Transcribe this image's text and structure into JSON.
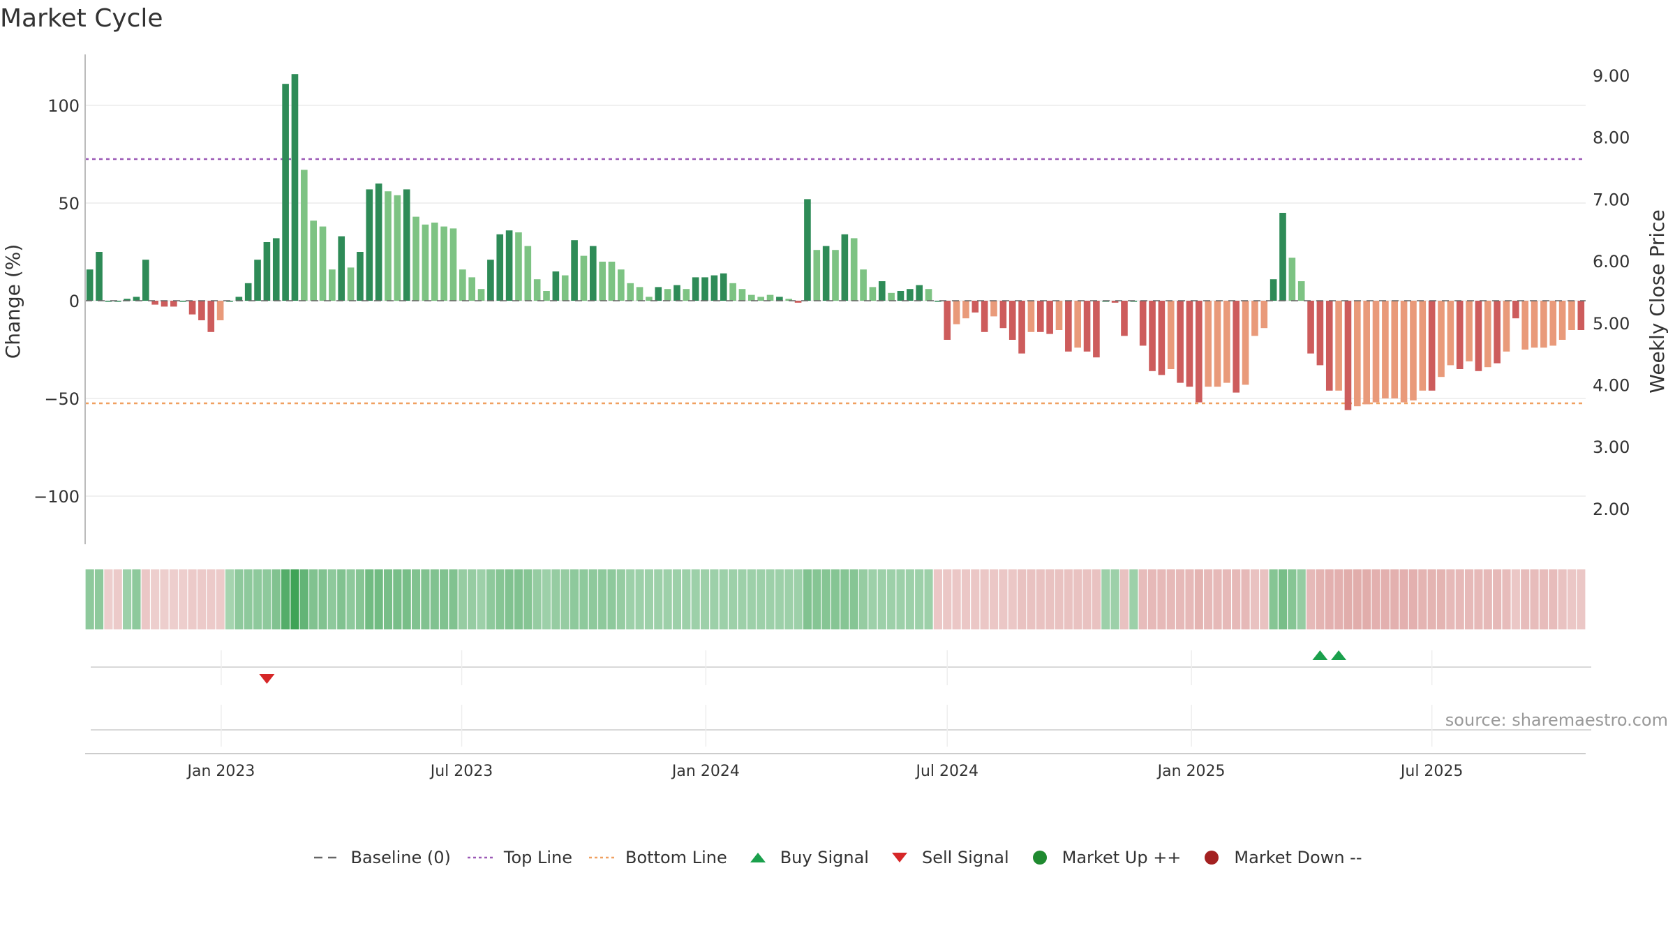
{
  "title": "Market Cycle",
  "source": "source: sharemaestro.com",
  "colors": {
    "up_strong": "#2e8b57",
    "up_light": "#7dc383",
    "down_strong": "#cd5c5c",
    "down_light": "#e99a7a",
    "top_line": "#9b59b6",
    "bottom_line": "#f0a060",
    "buy": "#1aa04c",
    "sell": "#d62728",
    "market_up": "#1f8a30",
    "market_down": "#a32020",
    "baseline": "#666666"
  },
  "legend": [
    {
      "label": "Baseline (0)",
      "icon": "dash-line"
    },
    {
      "label": "Top Line",
      "icon": "dotted-purple-line"
    },
    {
      "label": "Bottom Line",
      "icon": "dotted-orange-line"
    },
    {
      "label": "Buy Signal",
      "icon": "triangle-up-green"
    },
    {
      "label": "Sell Signal",
      "icon": "triangle-down-red"
    },
    {
      "label": "Market Up ++",
      "icon": "circle-green"
    },
    {
      "label": "Market Down --",
      "icon": "circle-red"
    }
  ],
  "chart_data": {
    "type": "bar",
    "ylabel": "Change (%)",
    "y2label": "Weekly Close Price",
    "ylim": [
      -125,
      125
    ],
    "y2lim": [
      1.5,
      9.5
    ],
    "yticks": [
      "100",
      "50",
      "0",
      "−50",
      "−100"
    ],
    "yticks_values": [
      100,
      50,
      0,
      -50,
      -100
    ],
    "y2ticks": [
      "9.00",
      "8.00",
      "7.00",
      "6.00",
      "5.00",
      "4.00",
      "3.00",
      "2.00"
    ],
    "y2ticks_values": [
      9,
      8,
      7,
      6,
      5,
      4,
      3,
      2
    ],
    "xticks": [
      "Jan 2023",
      "Jul 2023",
      "Jan 2024",
      "Jul 2024",
      "Jan 2025",
      "Jul 2025"
    ],
    "xticks_values": [
      14.6,
      40.4,
      66.6,
      92.5,
      118.7,
      144.5
    ],
    "x_start": "2022-10-21",
    "x_step": "1 week",
    "top_line": 72.5,
    "bottom_line": -52.5,
    "grid": true,
    "legend_position": "bottom",
    "series": [
      {
        "values": [
          16,
          25,
          0,
          0,
          1,
          2,
          21,
          -2,
          -3,
          -3,
          0,
          -7,
          -10,
          -16,
          -10,
          0,
          2,
          9,
          21,
          30,
          32,
          111,
          116,
          67,
          41,
          38,
          16,
          33,
          17,
          25,
          57,
          60,
          56,
          54,
          57,
          43,
          39,
          40,
          38,
          37,
          16,
          12,
          6,
          21,
          34,
          36,
          35,
          28,
          11,
          5,
          15,
          13,
          31,
          23,
          28,
          20,
          20,
          16,
          9,
          7,
          2,
          7,
          6,
          8,
          6,
          12,
          12,
          13,
          14,
          9,
          6,
          3,
          2,
          3,
          2,
          1,
          -1,
          52,
          26,
          28,
          26,
          34,
          32,
          16,
          7,
          10,
          4,
          5,
          6,
          8,
          6,
          0,
          -20,
          -12,
          -9,
          -6,
          -16,
          -8,
          -14,
          -20,
          -27,
          -16,
          -16,
          -17,
          -15,
          -26,
          -24,
          -26,
          -29,
          0,
          -1,
          -18,
          0,
          -23,
          -36,
          -38,
          -35,
          -42,
          -44,
          -52,
          -44,
          -44,
          -42,
          -47,
          -43,
          -18,
          -14,
          11,
          45,
          22,
          10,
          -27,
          -33,
          -46,
          -46,
          -56,
          -54,
          -53,
          -52,
          -50,
          -50,
          -52,
          -51,
          -46,
          -46,
          -39,
          -33,
          -35,
          -31,
          -36,
          -34,
          -32,
          -26,
          -9,
          -25,
          -24,
          -24,
          -23,
          -20,
          -15,
          -15
        ],
        "shades": [
          "S",
          "S",
          "S",
          "S",
          "S",
          "S",
          "S",
          "S",
          "S",
          "S",
          "S",
          "S",
          "S",
          "S",
          "L",
          "S",
          "S",
          "S",
          "S",
          "S",
          "S",
          "S",
          "S",
          "L",
          "L",
          "L",
          "L",
          "S",
          "L",
          "S",
          "S",
          "S",
          "L",
          "L",
          "S",
          "L",
          "L",
          "L",
          "L",
          "L",
          "L",
          "L",
          "L",
          "S",
          "S",
          "S",
          "L",
          "L",
          "L",
          "L",
          "S",
          "L",
          "S",
          "L",
          "S",
          "L",
          "L",
          "L",
          "L",
          "L",
          "L",
          "S",
          "L",
          "S",
          "L",
          "S",
          "S",
          "S",
          "S",
          "L",
          "L",
          "L",
          "L",
          "L",
          "S",
          "L",
          "S",
          "S",
          "L",
          "S",
          "L",
          "S",
          "L",
          "L",
          "L",
          "S",
          "L",
          "S",
          "S",
          "S",
          "L",
          "S",
          "S",
          "L",
          "L",
          "S",
          "S",
          "L",
          "S",
          "S",
          "S",
          "L",
          "S",
          "S",
          "L",
          "S",
          "L",
          "S",
          "S",
          "S",
          "S",
          "S",
          "S",
          "S",
          "S",
          "S",
          "L",
          "S",
          "S",
          "S",
          "L",
          "L",
          "L",
          "S",
          "L",
          "L",
          "L",
          "S",
          "S",
          "L",
          "L",
          "S",
          "S",
          "S",
          "L",
          "S",
          "L",
          "L",
          "L",
          "L",
          "L",
          "L",
          "L",
          "L",
          "S",
          "L",
          "L",
          "S",
          "L",
          "S",
          "L",
          "S",
          "L",
          "S",
          "L",
          "L",
          "L",
          "L",
          "L",
          "L",
          "S"
        ]
      }
    ],
    "heat_strip": [
      0.45,
      0.45,
      0.25,
      0.3,
      0.35,
      0.45,
      0.35,
      0.25,
      0.25,
      0.25,
      0.25,
      0.3,
      0.3,
      0.3,
      0.3,
      0.3,
      0.45,
      0.45,
      0.45,
      0.45,
      0.55,
      0.85,
      1.0,
      0.75,
      0.55,
      0.55,
      0.45,
      0.55,
      0.45,
      0.5,
      0.65,
      0.65,
      0.6,
      0.6,
      0.6,
      0.55,
      0.55,
      0.55,
      0.55,
      0.55,
      0.4,
      0.4,
      0.35,
      0.45,
      0.5,
      0.55,
      0.55,
      0.5,
      0.4,
      0.35,
      0.4,
      0.4,
      0.45,
      0.45,
      0.45,
      0.45,
      0.45,
      0.4,
      0.35,
      0.35,
      0.35,
      0.35,
      0.35,
      0.35,
      0.35,
      0.35,
      0.35,
      0.35,
      0.35,
      0.35,
      0.35,
      0.35,
      0.35,
      0.35,
      0.35,
      0.35,
      0.35,
      0.55,
      0.5,
      0.5,
      0.5,
      0.5,
      0.5,
      0.4,
      0.35,
      0.35,
      0.35,
      0.35,
      0.35,
      0.35,
      0.35,
      0.35,
      0.35,
      0.35,
      0.35,
      0.35,
      0.35,
      0.35,
      0.35,
      0.35,
      0.4,
      0.4,
      0.4,
      0.4,
      0.4,
      0.4,
      0.4,
      0.4,
      0.4,
      0.35,
      0.35,
      0.4,
      0.35,
      0.45,
      0.5,
      0.5,
      0.5,
      0.5,
      0.5,
      0.55,
      0.5,
      0.5,
      0.5,
      0.5,
      0.5,
      0.4,
      0.4,
      0.5,
      0.6,
      0.5,
      0.4,
      0.5,
      0.55,
      0.6,
      0.6,
      0.65,
      0.65,
      0.65,
      0.6,
      0.6,
      0.6,
      0.6,
      0.6,
      0.55,
      0.55,
      0.55,
      0.5,
      0.5,
      0.5,
      0.5,
      0.5,
      0.5,
      0.45,
      0.35,
      0.45,
      0.45,
      0.45,
      0.45,
      0.4,
      0.35,
      0.35
    ],
    "heat_sign": [
      1,
      1,
      -1,
      -1,
      1,
      1,
      -1,
      -1,
      -1,
      -1,
      -1,
      -1,
      -1,
      -1,
      -1,
      1,
      1,
      1,
      1,
      1,
      1,
      1,
      1,
      1,
      1,
      1,
      1,
      1,
      1,
      1,
      1,
      1,
      1,
      1,
      1,
      1,
      1,
      1,
      1,
      1,
      1,
      1,
      1,
      1,
      1,
      1,
      1,
      1,
      1,
      1,
      1,
      1,
      1,
      1,
      1,
      1,
      1,
      1,
      1,
      1,
      1,
      1,
      1,
      1,
      1,
      1,
      1,
      1,
      1,
      1,
      1,
      1,
      1,
      1,
      1,
      1,
      1,
      1,
      1,
      1,
      1,
      1,
      1,
      1,
      1,
      1,
      1,
      1,
      1,
      1,
      1,
      -1,
      -1,
      -1,
      -1,
      -1,
      -1,
      -1,
      -1,
      -1,
      -1,
      -1,
      -1,
      -1,
      -1,
      -1,
      -1,
      -1,
      -1,
      1,
      1,
      -1,
      1,
      -1,
      -1,
      -1,
      -1,
      -1,
      -1,
      -1,
      -1,
      -1,
      -1,
      -1,
      -1,
      -1,
      -1,
      1,
      1,
      1,
      1,
      -1,
      -1,
      -1,
      -1,
      -1,
      -1,
      -1,
      -1,
      -1,
      -1,
      -1,
      -1,
      -1,
      -1,
      -1,
      -1,
      -1,
      -1,
      -1,
      -1,
      -1,
      -1,
      -1,
      -1,
      -1,
      -1,
      -1,
      -1,
      -1,
      -1
    ],
    "signals": {
      "buy_indices": [
        132,
        134
      ],
      "sell_indices": [
        19
      ]
    }
  }
}
